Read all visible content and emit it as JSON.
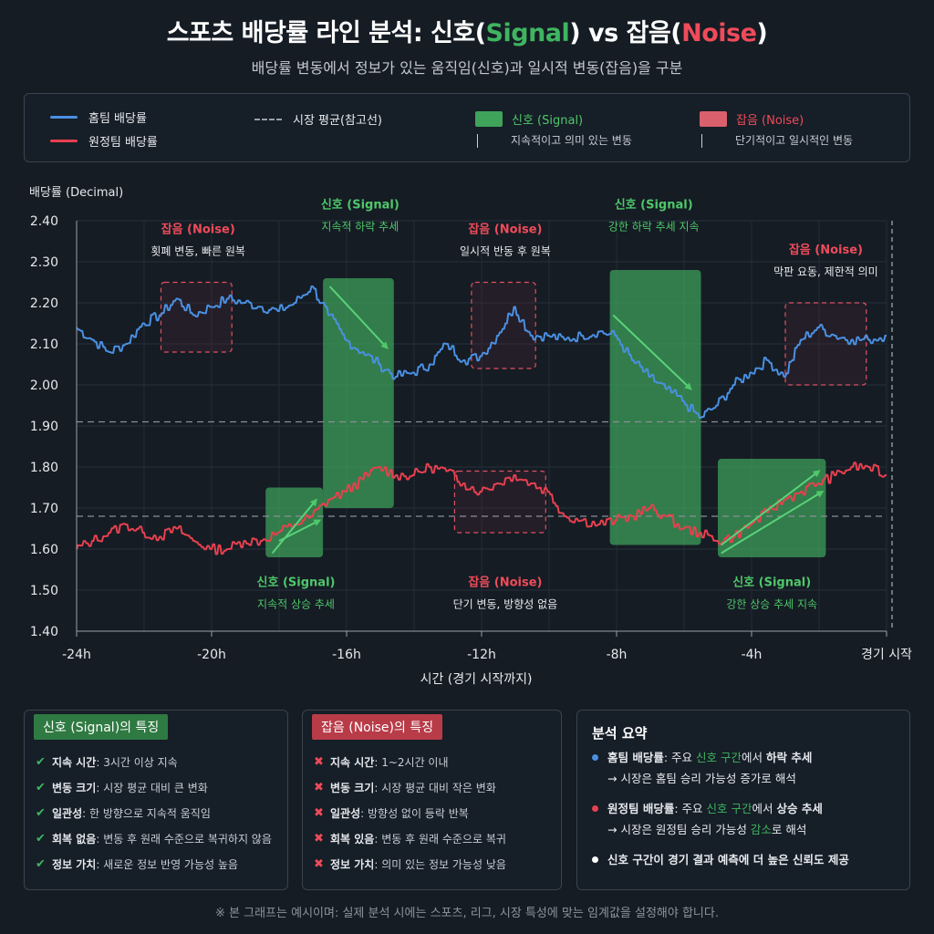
{
  "title": {
    "prefix": "스포츠 배당률 라인 분석: 신호(",
    "signal_word": "Signal",
    "middle": ") vs 잡음(",
    "noise_word": "Noise",
    "suffix": ")"
  },
  "subtitle": "배당률 변동에서 정보가 있는 움직임(신호)과 일시적 변동(잡음)을 구분",
  "legend": {
    "home": "홈팀 배당률",
    "away": "원정팀 배당률",
    "avg": "시장 평균(참고선)",
    "signal": "신호 (Signal)",
    "signal_desc": "지속적이고 의미 있는 변동",
    "noise": "잡음 (Noise)",
    "noise_desc": "단기적이고 일시적인 변동"
  },
  "colors": {
    "home": "#4a90e2",
    "away": "#e8404f",
    "signal": "#3fa35a",
    "noise": "#e05060",
    "avg": "#8a9098",
    "signal_text": "#4fc76a",
    "noise_text": "#ef4b5a"
  },
  "chart_data": {
    "type": "line",
    "ylabel": "배당률 (Decimal)",
    "xlabel": "시간 (경기 시작까지)",
    "ylim": [
      1.4,
      2.4
    ],
    "yticks": [
      1.4,
      1.5,
      1.6,
      1.7,
      1.8,
      1.9,
      2.0,
      2.1,
      2.2,
      2.3,
      2.4
    ],
    "xlim": [
      -24,
      0
    ],
    "xticks": [
      {
        "v": -24,
        "label": "-24h"
      },
      {
        "v": -20,
        "label": "-20h"
      },
      {
        "v": -16,
        "label": "-16h"
      },
      {
        "v": -12,
        "label": "-12h"
      },
      {
        "v": -8,
        "label": "-8h"
      },
      {
        "v": -4,
        "label": "-4h"
      },
      {
        "v": 0,
        "label": "경기 시작"
      }
    ],
    "grid": true,
    "series": [
      {
        "name": "홈팀 배당률",
        "color": "#4a90e2",
        "x": [
          -24,
          -23.5,
          -23,
          -22.5,
          -22,
          -21.5,
          -21,
          -20.5,
          -20,
          -19.5,
          -19,
          -18.5,
          -18,
          -17.5,
          -17,
          -16.5,
          -16,
          -15.5,
          -15,
          -14.5,
          -14,
          -13.5,
          -13,
          -12.5,
          -12,
          -11.5,
          -11,
          -10.5,
          -10,
          -9.5,
          -9,
          -8.5,
          -8,
          -7.5,
          -7,
          -6.5,
          -6,
          -5.5,
          -5,
          -4.5,
          -4,
          -3.5,
          -3,
          -2.5,
          -2,
          -1.5,
          -1,
          -0.5,
          0
        ],
        "y": [
          2.14,
          2.11,
          2.08,
          2.1,
          2.15,
          2.17,
          2.21,
          2.17,
          2.19,
          2.21,
          2.2,
          2.19,
          2.18,
          2.2,
          2.24,
          2.17,
          2.11,
          2.08,
          2.05,
          2.02,
          2.03,
          2.05,
          2.1,
          2.06,
          2.07,
          2.12,
          2.19,
          2.12,
          2.12,
          2.11,
          2.12,
          2.13,
          2.12,
          2.06,
          2.02,
          1.99,
          1.96,
          1.92,
          1.95,
          2.0,
          2.03,
          2.06,
          2.02,
          2.11,
          2.14,
          2.12,
          2.11,
          2.11,
          2.12
        ]
      },
      {
        "name": "원정팀 배당률",
        "color": "#e8404f",
        "x": [
          -24,
          -23.5,
          -23,
          -22.5,
          -22,
          -21.5,
          -21,
          -20.5,
          -20,
          -19.5,
          -19,
          -18.5,
          -18,
          -17.5,
          -17,
          -16.5,
          -16,
          -15.5,
          -15,
          -14.5,
          -14,
          -13.5,
          -13,
          -12.5,
          -12,
          -11.5,
          -11,
          -10.5,
          -10,
          -9.5,
          -9,
          -8.5,
          -8,
          -7.5,
          -7,
          -6.5,
          -6,
          -5.5,
          -5,
          -4.5,
          -4,
          -3.5,
          -3,
          -2.5,
          -2,
          -1.5,
          -1,
          -0.5,
          0
        ],
        "y": [
          1.6,
          1.62,
          1.64,
          1.66,
          1.64,
          1.63,
          1.65,
          1.62,
          1.6,
          1.6,
          1.62,
          1.62,
          1.64,
          1.66,
          1.68,
          1.72,
          1.74,
          1.77,
          1.8,
          1.78,
          1.78,
          1.8,
          1.79,
          1.76,
          1.74,
          1.76,
          1.78,
          1.76,
          1.74,
          1.68,
          1.67,
          1.66,
          1.67,
          1.68,
          1.7,
          1.68,
          1.65,
          1.64,
          1.62,
          1.63,
          1.66,
          1.69,
          1.72,
          1.74,
          1.76,
          1.78,
          1.8,
          1.8,
          1.78
        ]
      },
      {
        "name": "시장 평균(참고선)",
        "color": "#8a9098",
        "dashed": true,
        "values": [
          1.91,
          1.68
        ]
      }
    ],
    "regions": [
      {
        "kind": "noise",
        "x0": -21.5,
        "x1": -19.4,
        "y0": 2.08,
        "y1": 2.25,
        "label": "잡음 (Noise)",
        "desc": "횟폐 변동, 빠른 원복",
        "label_x": -20.4,
        "label_y": 2.37,
        "label_pos": "above"
      },
      {
        "kind": "signal",
        "x0": -16.7,
        "x1": -14.6,
        "y0": 1.7,
        "y1": 2.26,
        "label": "신호 (Signal)",
        "desc": "지속적 하락 추세",
        "label_x": -15.6,
        "label_y": 2.43,
        "label_pos": "above",
        "arrow": [
          -16.5,
          2.24,
          -14.8,
          2.09
        ]
      },
      {
        "kind": "noise",
        "x0": -12.3,
        "x1": -10.4,
        "y0": 2.04,
        "y1": 2.25,
        "label": "잡음 (Noise)",
        "desc": "일시적 반동 후 원복",
        "label_x": -11.3,
        "label_y": 2.37,
        "label_pos": "above"
      },
      {
        "kind": "signal",
        "x0": -8.2,
        "x1": -5.5,
        "y0": 1.61,
        "y1": 2.28,
        "label": "신호 (Signal)",
        "desc": "강한 하락 추세 지속",
        "label_x": -6.9,
        "label_y": 2.43,
        "label_pos": "above",
        "arrow": [
          -8.1,
          2.17,
          -5.8,
          1.99
        ]
      },
      {
        "kind": "noise",
        "x0": -3.0,
        "x1": -0.6,
        "y0": 2.0,
        "y1": 2.2,
        "label": "잡음 (Noise)",
        "desc": "막판 요동, 제한적 의미",
        "label_x": -1.8,
        "label_y": 2.32,
        "label_pos": "above"
      },
      {
        "kind": "signal",
        "x0": -18.4,
        "x1": -16.7,
        "y0": 1.58,
        "y1": 1.75,
        "label": "신호 (Signal)",
        "desc": "지속적 상승 추세",
        "label_x": -17.5,
        "label_y": 1.51,
        "label_pos": "below",
        "arrows": [
          [
            -18.2,
            1.59,
            -16.9,
            1.72
          ],
          [
            -18.0,
            1.62,
            -16.8,
            1.67
          ]
        ]
      },
      {
        "kind": "noise",
        "x0": -12.8,
        "x1": -10.1,
        "y0": 1.64,
        "y1": 1.79,
        "label": "잡음 (Noise)",
        "desc": "단기 변동, 방향성 없음",
        "label_x": -11.3,
        "label_y": 1.51,
        "label_pos": "below"
      },
      {
        "kind": "signal",
        "x0": -5.0,
        "x1": -1.8,
        "y0": 1.58,
        "y1": 1.82,
        "label": "신호 (Signal)",
        "desc": "강한 상승 추세 지속",
        "label_x": -3.4,
        "label_y": 1.51,
        "label_pos": "below",
        "arrows": [
          [
            -4.9,
            1.61,
            -2.0,
            1.79
          ],
          [
            -4.9,
            1.59,
            -1.9,
            1.74
          ]
        ]
      }
    ]
  },
  "signal_panel": {
    "tag_a": "신호 (",
    "tag_b": "Signal",
    "tag_c": ")의 특징",
    "items": [
      {
        "k": "지속 시간",
        "v": ": 3시간 이상 지속"
      },
      {
        "k": "변동 크기",
        "v": ": 시장 평균 대비 큰 변화"
      },
      {
        "k": "일관성",
        "v": ": 한 방향으로 지속적 움직임"
      },
      {
        "k": "회복 없음",
        "v": ": 변동 후 원래 수준으로 복귀하지 않음"
      },
      {
        "k": "정보 가치",
        "v": ": 새로운 정보 반영 가능성 높음"
      }
    ]
  },
  "noise_panel": {
    "tag_a": "잡음 (",
    "tag_b": "Noise",
    "tag_c": ")의 특징",
    "items": [
      {
        "k": "지속 시간",
        "v": ": 1~2시간 이내"
      },
      {
        "k": "변동 크기",
        "v": ": 시장 평균 대비 작은 변화"
      },
      {
        "k": "일관성",
        "v": ": 방향성 없이 등락 반복"
      },
      {
        "k": "회복 있음",
        "v": ": 변동 후 원래 수준으로 복귀"
      },
      {
        "k": "정보 가치",
        "v": ": 의미 있는 정보 가능성 낮음"
      }
    ]
  },
  "summary": {
    "title": "분석 요약",
    "home_label": "홈팀 배당률",
    "home_a": ": 주요 ",
    "home_green": "신호 구간",
    "home_b": "에서 ",
    "home_trend": "하락 추세",
    "home_line2": "→ 시장은 홈팀 승리 가능성 증가로 해석",
    "away_label": "원정팀 배당률",
    "away_a": ": 주요 ",
    "away_green": "신호 구간",
    "away_b": "에서 ",
    "away_trend": "상승 추세",
    "away_line2a": "→ 시장은 원정팀 승리 가능성 ",
    "away_line2b": "감소",
    "away_line2c": "로 해석",
    "conclusion": "신호 구간이 경기 결과 예측에 더 높은 신뢰도 제공"
  },
  "footnote": "※ 본 그래프는 예시이며: 실제 분석 시에는 스포츠, 리그, 시장 특성에 맞는 임계값을 설정해야 합니다."
}
